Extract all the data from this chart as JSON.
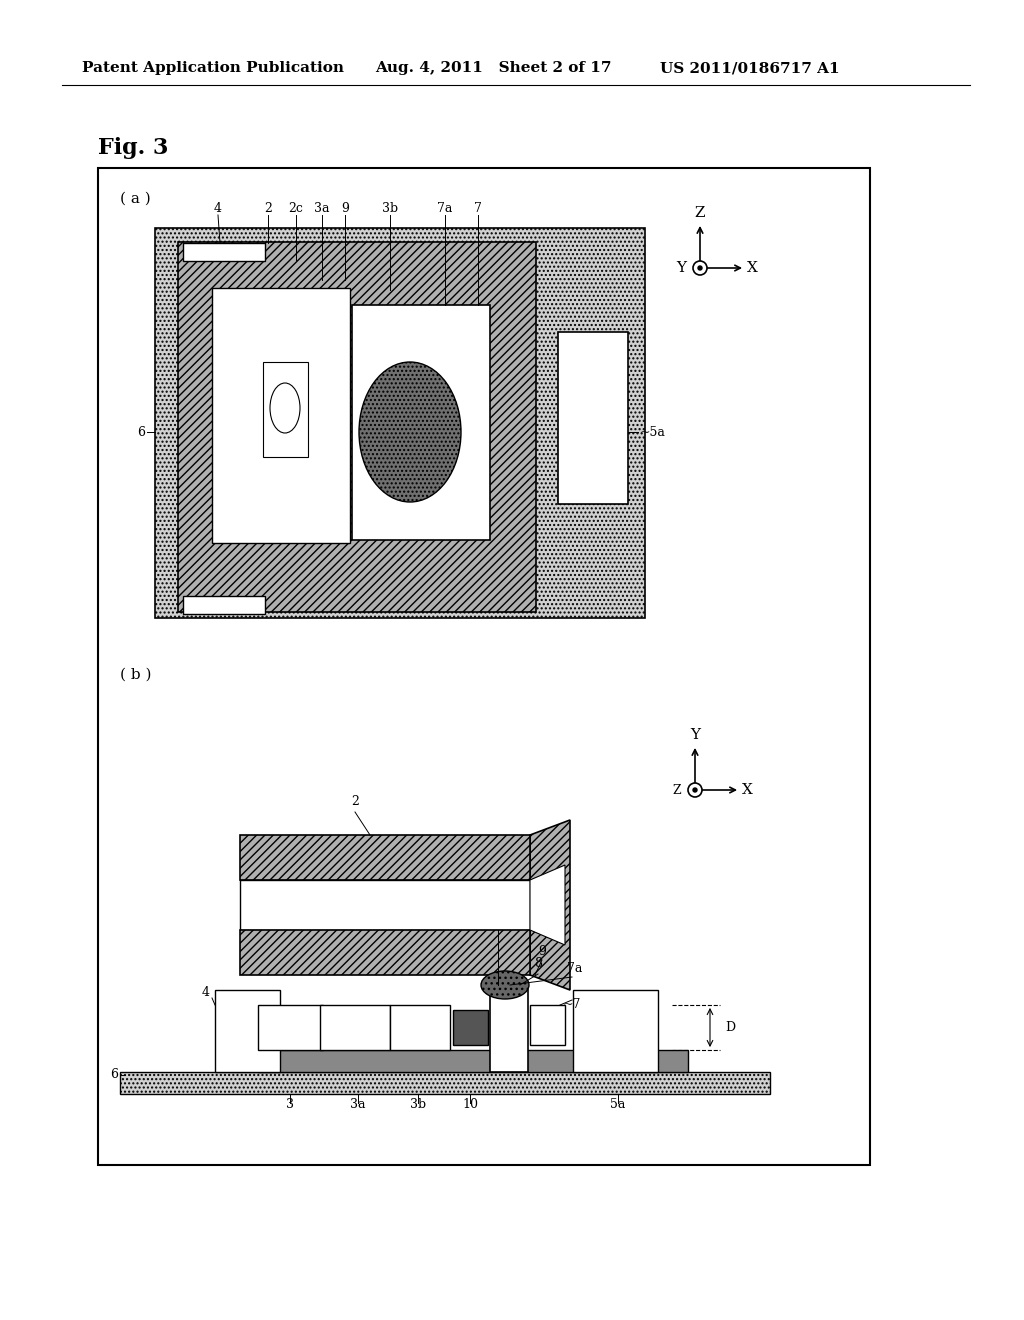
{
  "bg_color": "#ffffff",
  "header_left": "Patent Application Publication",
  "header_mid": "Aug. 4, 2011   Sheet 2 of 17",
  "header_right": "US 2011/0186717 A1",
  "fig_label": "Fig. 3",
  "label_a": "( a )",
  "label_b": "( b )"
}
